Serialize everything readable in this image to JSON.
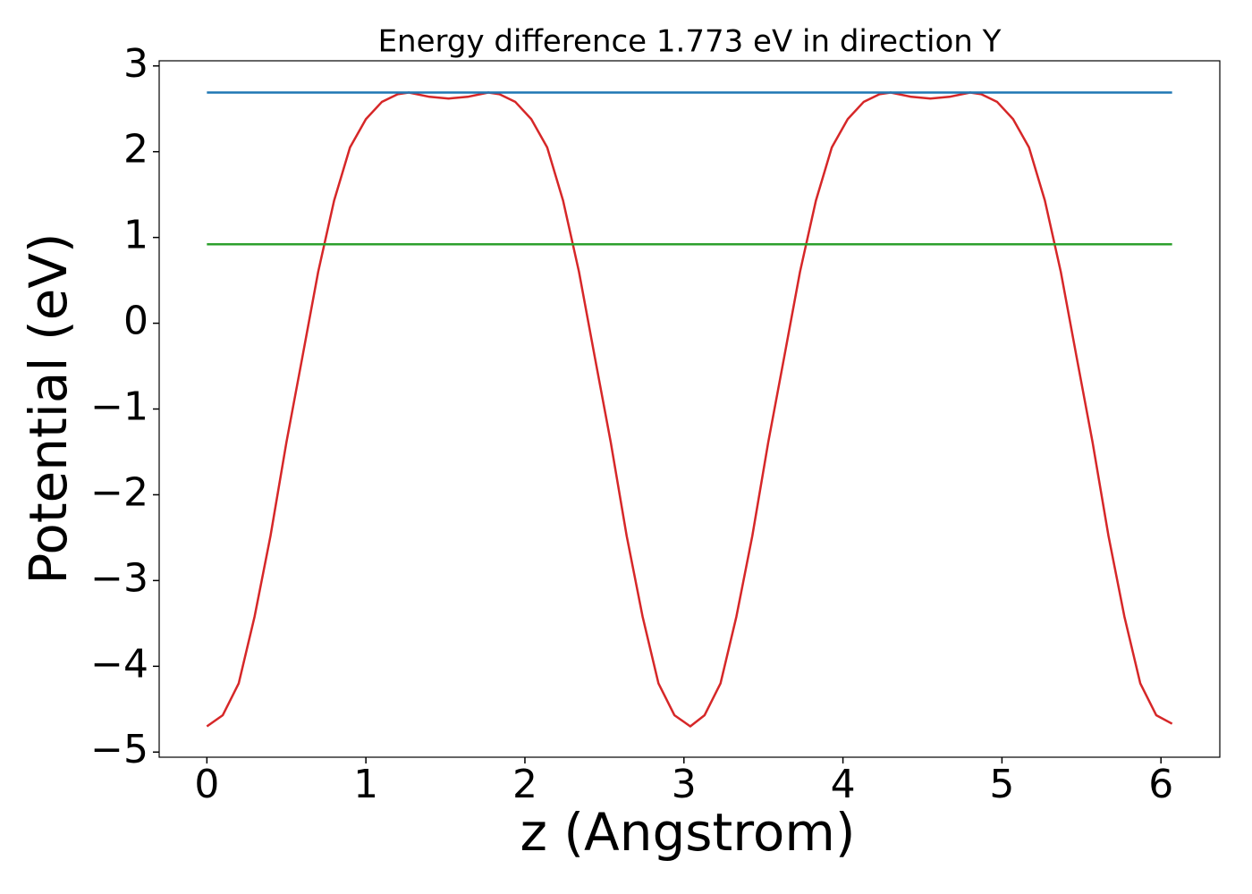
{
  "chart_data": {
    "type": "line",
    "title": "Energy difference 1.773 eV in direction Y",
    "x_label": "z (Angstrom)",
    "y_label": "Potential (eV)",
    "xlim": [
      -0.3,
      6.37
    ],
    "ylim": [
      -5.06,
      3.06
    ],
    "xticks": [
      0,
      1,
      2,
      3,
      4,
      5,
      6
    ],
    "yticks": [
      {
        "value": -5,
        "label": "−5"
      },
      {
        "value": -4,
        "label": "−4"
      },
      {
        "value": -3,
        "label": "−3"
      },
      {
        "value": -2,
        "label": "−2"
      },
      {
        "value": -1,
        "label": "−1"
      },
      0,
      1,
      2,
      3
    ],
    "grid": false,
    "series": [
      {
        "color": "#d62728",
        "x": [
          0,
          0.1,
          0.2,
          0.3,
          0.4,
          0.5,
          0.6,
          0.7,
          0.8,
          0.9,
          1.0,
          1.1,
          1.2,
          1.27,
          1.4,
          1.52,
          1.64,
          1.77,
          1.84,
          1.94,
          2.04,
          2.14,
          2.24,
          2.34,
          2.44,
          2.54,
          2.64,
          2.74,
          2.84,
          2.94,
          3.04,
          3.13,
          3.23,
          3.33,
          3.43,
          3.53,
          3.63,
          3.73,
          3.83,
          3.93,
          4.03,
          4.13,
          4.23,
          4.3,
          4.43,
          4.55,
          4.67,
          4.8,
          4.87,
          4.97,
          5.07,
          5.17,
          5.27,
          5.37,
          5.47,
          5.57,
          5.67,
          5.77,
          5.87,
          5.97,
          6.07
        ],
        "values": [
          -4.7,
          -4.57,
          -4.2,
          -3.42,
          -2.48,
          -1.39,
          -0.4,
          0.6,
          1.43,
          2.05,
          2.38,
          2.58,
          2.67,
          2.69,
          2.64,
          2.62,
          2.64,
          2.69,
          2.67,
          2.58,
          2.38,
          2.05,
          1.43,
          0.6,
          -0.4,
          -1.39,
          -2.48,
          -3.42,
          -4.2,
          -4.57,
          -4.7,
          -4.57,
          -4.2,
          -3.42,
          -2.48,
          -1.39,
          -0.4,
          0.6,
          1.43,
          2.05,
          2.38,
          2.58,
          2.67,
          2.69,
          2.64,
          2.62,
          2.64,
          2.69,
          2.67,
          2.58,
          2.38,
          2.05,
          1.43,
          0.6,
          -0.4,
          -1.39,
          -2.48,
          -3.42,
          -4.2,
          -4.57,
          -4.67
        ]
      },
      {
        "color": "#1f77b4",
        "x": [
          0,
          6.07
        ],
        "values": [
          2.69,
          2.69
        ]
      },
      {
        "color": "#2ca02c",
        "x": [
          0,
          6.07
        ],
        "values": [
          0.92,
          0.92
        ]
      }
    ]
  }
}
